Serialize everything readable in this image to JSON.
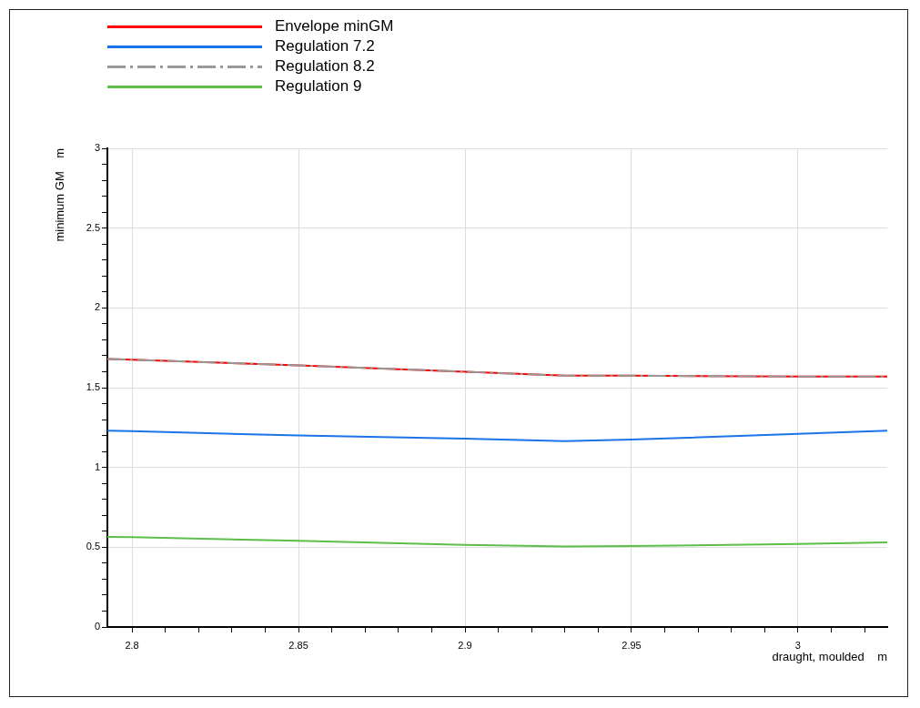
{
  "chart_data": {
    "type": "line",
    "xlabel": "draught, moulded    m",
    "ylabel": "minimum GM    m",
    "x": [
      2.7926,
      2.8,
      2.85,
      2.9,
      2.93,
      2.95,
      3.0,
      3.0268
    ],
    "series": [
      {
        "name": "Envelope minGM",
        "color": "#ff0000",
        "line_style": "solid",
        "values": [
          1.68,
          1.675,
          1.64,
          1.6,
          1.575,
          1.575,
          1.57,
          1.57
        ]
      },
      {
        "name": "Regulation 7.2",
        "color": "#1a73e8",
        "line_style": "solid",
        "values": [
          1.23,
          1.227,
          1.2,
          1.18,
          1.165,
          1.175,
          1.21,
          1.23
        ]
      },
      {
        "name": "Regulation 8.2",
        "color": "#999999",
        "line_style": "dashed",
        "values": [
          1.68,
          1.675,
          1.64,
          1.6,
          1.575,
          1.575,
          1.57,
          1.57
        ]
      },
      {
        "name": "Regulation 9",
        "color": "#5cbf4a",
        "line_style": "solid",
        "values": [
          0.565,
          0.563,
          0.54,
          0.515,
          0.505,
          0.507,
          0.52,
          0.53
        ]
      }
    ],
    "xlim": [
      2.7926,
      3.0268
    ],
    "xticks": [
      2.8,
      {
        "value": 2.81,
        "label": null
      },
      {
        "value": 2.82,
        "label": null
      },
      {
        "value": 2.83,
        "label": null
      },
      {
        "value": 2.84,
        "label": null
      },
      2.85,
      {
        "value": 2.86,
        "label": null
      },
      {
        "value": 2.87,
        "label": null
      },
      {
        "value": 2.88,
        "label": null
      },
      {
        "value": 2.89,
        "label": null
      },
      2.9,
      {
        "value": 2.91,
        "label": null
      },
      {
        "value": 2.92,
        "label": null
      },
      {
        "value": 2.93,
        "label": null
      },
      {
        "value": 2.94,
        "label": null
      },
      2.95,
      {
        "value": 2.96,
        "label": null
      },
      {
        "value": 2.97,
        "label": null
      },
      {
        "value": 2.98,
        "label": null
      },
      {
        "value": 2.99,
        "label": null
      },
      3,
      {
        "value": 3.01,
        "label": null
      },
      {
        "value": 3.02,
        "label": null
      }
    ],
    "ylim": [
      0,
      3
    ],
    "yticks": [
      0,
      {
        "value": 0.1,
        "label": null
      },
      {
        "value": 0.2,
        "label": null
      },
      {
        "value": 0.3,
        "label": null
      },
      {
        "value": 0.4,
        "label": null
      },
      0.5,
      {
        "value": 0.6,
        "label": null
      },
      {
        "value": 0.7,
        "label": null
      },
      {
        "value": 0.8,
        "label": null
      },
      {
        "value": 0.9,
        "label": null
      },
      1,
      {
        "value": 1.1,
        "label": null
      },
      {
        "value": 1.2,
        "label": null
      },
      {
        "value": 1.3,
        "label": null
      },
      {
        "value": 1.4,
        "label": null
      },
      1.5,
      {
        "value": 1.6,
        "label": null
      },
      {
        "value": 1.7,
        "label": null
      },
      {
        "value": 1.8,
        "label": null
      },
      {
        "value": 1.9,
        "label": null
      },
      2,
      {
        "value": 2.1,
        "label": null
      },
      {
        "value": 2.2,
        "label": null
      },
      {
        "value": 2.3,
        "label": null
      },
      {
        "value": 2.4,
        "label": null
      },
      2.5,
      {
        "value": 2.6,
        "label": null
      },
      {
        "value": 2.7,
        "label": null
      },
      {
        "value": 2.8,
        "label": null
      },
      {
        "value": 2.9,
        "label": null
      },
      3
    ],
    "grid": true,
    "legend": "top left",
    "marker": "none"
  }
}
